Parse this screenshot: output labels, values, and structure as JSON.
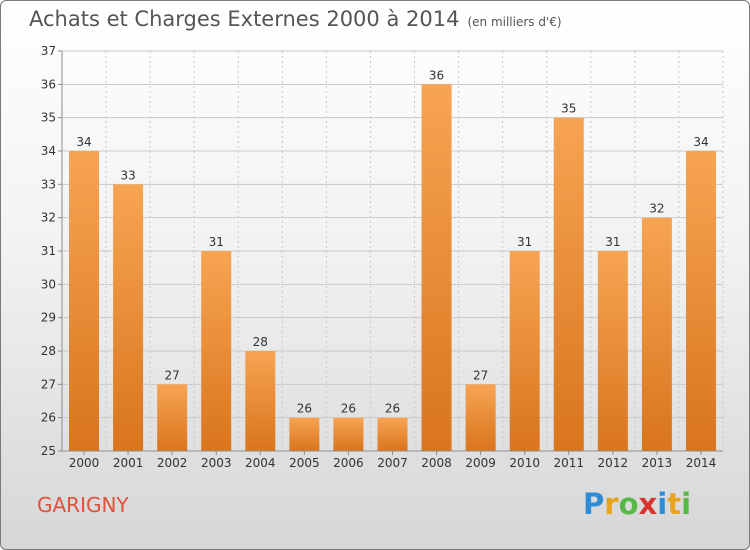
{
  "header": {
    "title": "Achats et Charges Externes 2000 à 2014",
    "subtitle": "(en milliers d'€)"
  },
  "footer": {
    "commune": "GARIGNY",
    "logo_letters": [
      "P",
      "r",
      "o",
      "x",
      "i",
      "t",
      "i"
    ],
    "logo_colors": [
      "#2e8bd6",
      "#e8a51c",
      "#58b847",
      "#d9342b",
      "#2e8bd6",
      "#e8a51c",
      "#58b847"
    ]
  },
  "colors": {
    "bar_light": "#f7a452",
    "bar_dark": "#d9751d",
    "grid": "#c8c8c8",
    "axis": "#8c8c8c"
  },
  "chart_data": {
    "type": "bar",
    "title": "Achats et Charges Externes 2000 à 2014",
    "subtitle": "(en milliers d'€)",
    "xlabel": "",
    "ylabel": "",
    "categories": [
      "2000",
      "2001",
      "2002",
      "2003",
      "2004",
      "2005",
      "2006",
      "2007",
      "2008",
      "2009",
      "2010",
      "2011",
      "2012",
      "2013",
      "2014"
    ],
    "values": [
      34,
      33,
      27,
      31,
      28,
      26,
      26,
      26,
      36,
      27,
      31,
      35,
      31,
      32,
      34
    ],
    "ylim": [
      25,
      37
    ],
    "yticks": [
      25,
      26,
      27,
      28,
      29,
      30,
      31,
      32,
      33,
      34,
      35,
      36,
      37
    ],
    "grid": true,
    "data_labels": true
  }
}
